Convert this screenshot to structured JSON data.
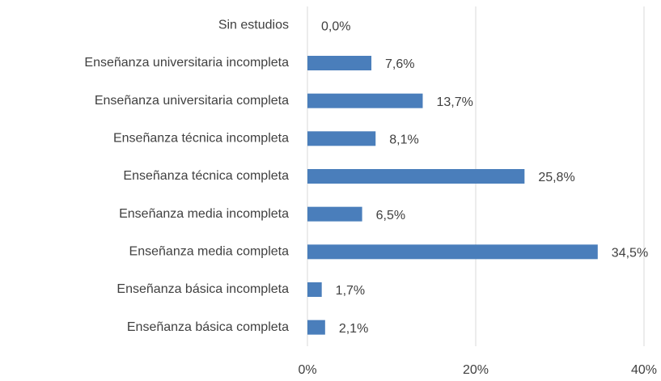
{
  "chart_data": {
    "type": "barh",
    "categories": [
      "Sin estudios",
      "Enseñanza universitaria incompleta",
      "Enseñanza universitaria completa",
      "Enseñanza técnica incompleta",
      "Enseñanza técnica completa",
      "Enseñanza media incompleta",
      "Enseñanza media completa",
      "Enseñanza básica incompleta",
      "Enseñanza básica completa"
    ],
    "values": [
      0.0,
      7.6,
      13.7,
      8.1,
      25.8,
      6.5,
      34.5,
      1.7,
      2.1
    ],
    "value_labels": [
      "0,0%",
      "7,6%",
      "13,7%",
      "8,1%",
      "25,8%",
      "6,5%",
      "34,5%",
      "1,7%",
      "2,1%"
    ],
    "color": "#4a7ebb",
    "xlim": [
      0,
      40
    ],
    "xticks": [
      {
        "value": 0,
        "label": "0%"
      },
      {
        "value": 20,
        "label": "20%"
      },
      {
        "value": 40,
        "label": "40%"
      }
    ],
    "grid": true
  }
}
